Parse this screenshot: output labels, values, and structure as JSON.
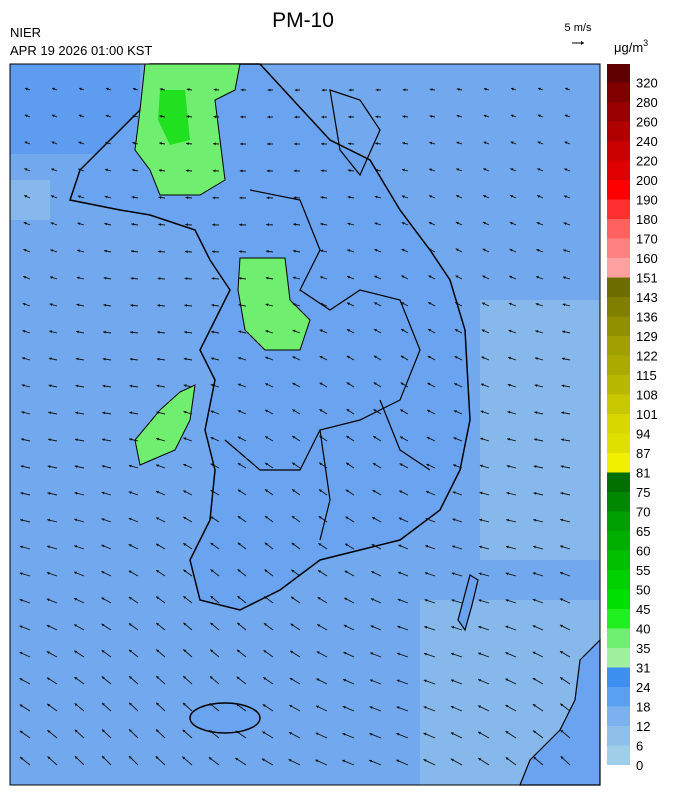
{
  "header": {
    "title": "PM-10",
    "agency": "NIER",
    "datetime": "APR 19 2026 01:00 KST",
    "wind_scale": "5 m/s"
  },
  "colorbar": {
    "unit": "μg/m",
    "unit_sup": "3",
    "labels": [
      0,
      6,
      12,
      18,
      24,
      31,
      35,
      40,
      45,
      50,
      55,
      60,
      65,
      70,
      75,
      81,
      87,
      94,
      101,
      108,
      115,
      122,
      129,
      136,
      143,
      151,
      160,
      170,
      180,
      190,
      200,
      220,
      240,
      260,
      280,
      320
    ],
    "colors": [
      "#a0cde8",
      "#8fbfe8",
      "#7db0ee",
      "#5aa0f0",
      "#3d8ff0",
      "#a0f0a0",
      "#70f070",
      "#20f020",
      "#00e000",
      "#00d000",
      "#00c000",
      "#00b000",
      "#00a000",
      "#008800",
      "#007000",
      "#f0f000",
      "#e0e000",
      "#d8d800",
      "#c8c800",
      "#b8b800",
      "#aaaa00",
      "#a0a000",
      "#909000",
      "#808000",
      "#6e6e00",
      "#ffa0a0",
      "#ff8080",
      "#ff6060",
      "#ff3030",
      "#ff0000",
      "#e00000",
      "#c80000",
      "#b00000",
      "#980000",
      "#800000",
      "#600000"
    ]
  }
}
